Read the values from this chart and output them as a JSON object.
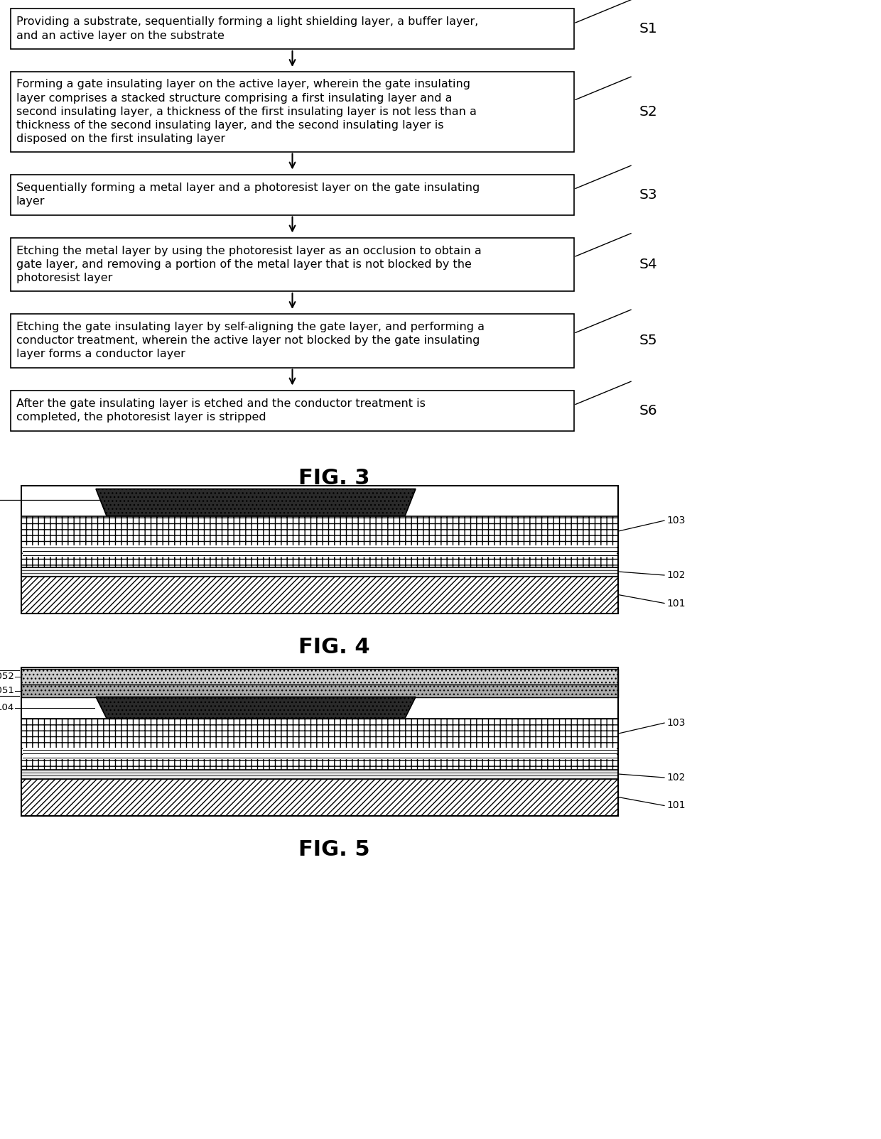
{
  "steps": [
    {
      "label": "S1",
      "lines": [
        "Providing a substrate, sequentially forming a light shielding layer, a buffer layer,",
        "and an active layer on the substrate"
      ],
      "nlines": 2
    },
    {
      "label": "S2",
      "lines": [
        "Forming a gate insulating layer on the active layer, wherein the gate insulating",
        "layer comprises a stacked structure comprising a first insulating layer and a",
        "second insulating layer, a thickness of the first insulating layer is not less than a",
        "thickness of the second insulating layer, and the second insulating layer is",
        "disposed on the first insulating layer"
      ],
      "nlines": 5
    },
    {
      "label": "S3",
      "lines": [
        "Sequentially forming a metal layer and a photoresist layer on the gate insulating",
        "layer"
      ],
      "nlines": 2
    },
    {
      "label": "S4",
      "lines": [
        "Etching the metal layer by using the photoresist layer as an occlusion to obtain a",
        "gate layer, and removing a portion of the metal layer that is not blocked by the",
        "photoresist layer"
      ],
      "nlines": 3
    },
    {
      "label": "S5",
      "lines": [
        "Etching the gate insulating layer by self-aligning the gate layer, and performing a",
        "conductor treatment, wherein the active layer not blocked by the gate insulating",
        "layer forms a conductor layer"
      ],
      "nlines": 3
    },
    {
      "label": "S6",
      "lines": [
        "After the gate insulating layer is etched and the conductor treatment is",
        "completed, the photoresist layer is stripped"
      ],
      "nlines": 2
    }
  ],
  "fig3_label": "FIG. 3",
  "fig4_label": "FIG. 4",
  "fig5_label": "FIG. 5"
}
